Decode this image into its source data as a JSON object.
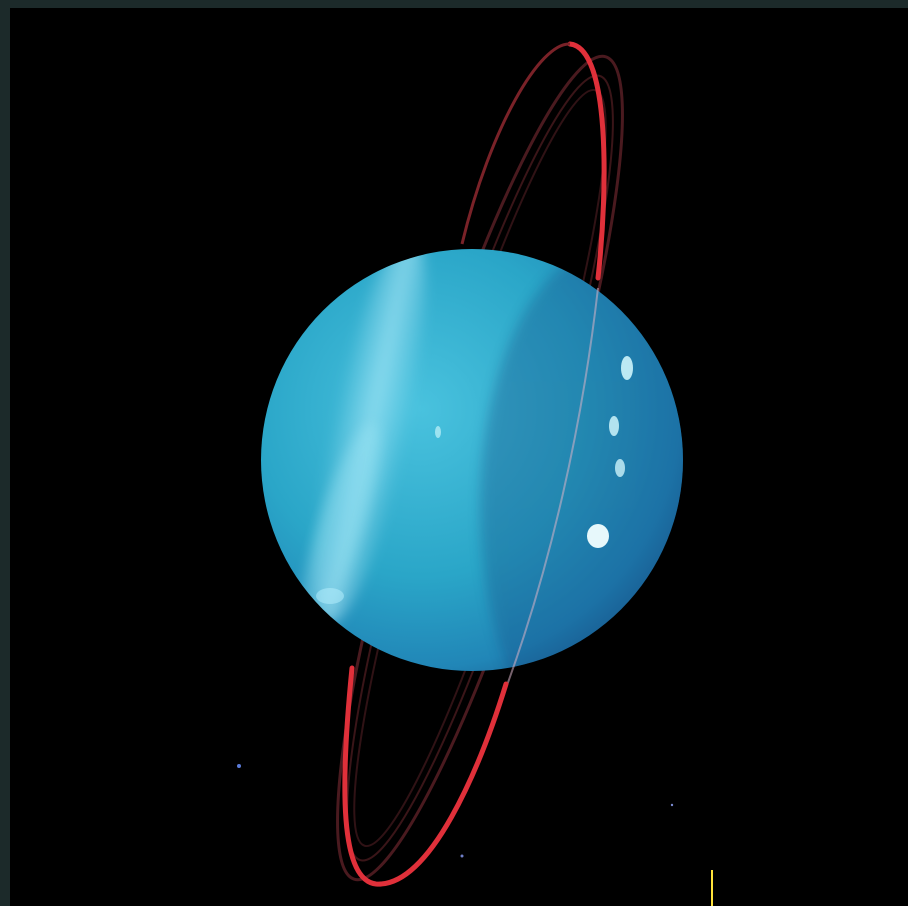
{
  "image": {
    "subject": "",
    "colors": {
      "frame": "#1c2a2a",
      "space": "#000000",
      "planet_light": "#7fd3e6",
      "planet_mid": "#2aa6c8",
      "planet_dark": "#1e78a8",
      "ring_outer": "#e0303a",
      "ring_inner": "#5a1e22",
      "clouds": "#d8fbff",
      "marker": "#ffe23a"
    }
  }
}
